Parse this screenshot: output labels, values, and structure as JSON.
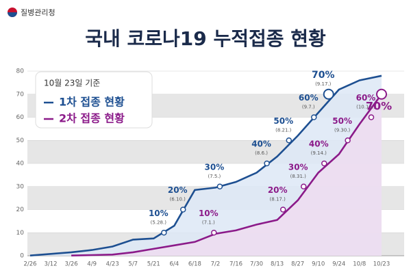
{
  "header": {
    "org": "질병관리청"
  },
  "chart_data": {
    "type": "line",
    "title": "국내 코로나19 누적접종 현황",
    "legend_title": "10월 23일 기준",
    "categories": [
      "2/26",
      "3/12",
      "3/26",
      "4/9",
      "4/23",
      "5/7",
      "5/21",
      "6/4",
      "6/18",
      "7/2",
      "7/16",
      "7/30",
      "8/13",
      "8/27",
      "9/10",
      "9/24",
      "10/8",
      "10/23"
    ],
    "ylim": [
      0,
      80
    ],
    "yticks": [
      0,
      10,
      20,
      30,
      40,
      50,
      60,
      70,
      80
    ],
    "grid": true,
    "series": [
      {
        "name": "1차 접종 현황",
        "color": "#1d4f91",
        "values": [
          0.1,
          0.8,
          1.5,
          2.5,
          4,
          7,
          7.5,
          13,
          28.5,
          29.5,
          32,
          36,
          43,
          52,
          62,
          72,
          76,
          78
        ],
        "annotations": [
          {
            "value": 10,
            "label": "10%",
            "date": "(5.28.)"
          },
          {
            "value": 20,
            "label": "20%",
            "date": "(6.10.)"
          },
          {
            "value": 30,
            "label": "30%",
            "date": "(7.5.)"
          },
          {
            "value": 40,
            "label": "40%",
            "date": "(8.6.)"
          },
          {
            "value": 50,
            "label": "50%",
            "date": "(8.21.)"
          },
          {
            "value": 60,
            "label": "60%",
            "date": "(9.7.)"
          },
          {
            "value": 70,
            "label": "70%",
            "date": "(9.17.)"
          }
        ]
      },
      {
        "name": "2차 접종 현황",
        "color": "#8b1a89",
        "values": [
          null,
          null,
          0.1,
          0.3,
          0.5,
          1.5,
          3,
          4.5,
          6,
          9.5,
          11,
          13.5,
          15.5,
          24,
          36,
          44,
          57,
          70
        ],
        "annotations": [
          {
            "value": 10,
            "label": "10%",
            "date": "(7.1.)"
          },
          {
            "value": 20,
            "label": "20%",
            "date": "(8.17.)"
          },
          {
            "value": 30,
            "label": "30%",
            "date": "(8.31.)"
          },
          {
            "value": 40,
            "label": "40%",
            "date": "(9.14.)"
          },
          {
            "value": 50,
            "label": "50%",
            "date": "(9.30.)"
          },
          {
            "value": 60,
            "label": "60%",
            "date": "(10.16.)"
          },
          {
            "value": 70,
            "label": "70%"
          }
        ]
      }
    ]
  }
}
